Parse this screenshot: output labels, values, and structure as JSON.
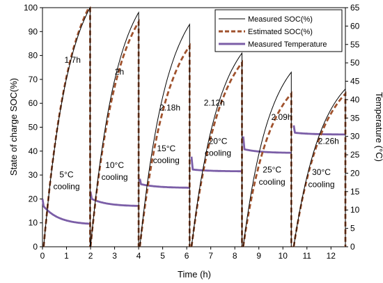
{
  "chart_data": {
    "type": "line",
    "xlabel": "Time (h)",
    "ylabel": "State of charge SOC(%)",
    "y2label": "Temperature (°C)",
    "xlim": [
      0,
      12.6
    ],
    "ylim": [
      0,
      100
    ],
    "y2lim": [
      0,
      65
    ],
    "x_ticks": [
      0,
      1,
      2,
      3,
      4,
      5,
      6,
      7,
      8,
      9,
      10,
      11,
      12
    ],
    "y_ticks": [
      0,
      10,
      20,
      30,
      40,
      50,
      60,
      70,
      80,
      90,
      100
    ],
    "y2_ticks": [
      0,
      5,
      10,
      15,
      20,
      25,
      30,
      35,
      40,
      45,
      50,
      55,
      60,
      65
    ],
    "grid": false,
    "legend_position": "top-right",
    "colors": {
      "measured_soc": "#000000",
      "estimated_soc": "#a0522d",
      "temperature": "#7b5ea7"
    },
    "series": [
      {
        "name": "Measured SOC(%)",
        "axis": "left",
        "style": "solid-thin",
        "segments": [
          {
            "t_start": 0.05,
            "t_end": 1.98,
            "soc_start": 0,
            "soc_end": 100
          },
          {
            "t_start": 2.0,
            "t_end": 4.0,
            "soc_start": 0,
            "soc_end": 98
          },
          {
            "t_start": 4.05,
            "t_end": 6.12,
            "soc_start": 0,
            "soc_end": 93
          },
          {
            "t_start": 6.2,
            "t_end": 8.3,
            "soc_start": 0,
            "soc_end": 81
          },
          {
            "t_start": 8.35,
            "t_end": 10.35,
            "soc_start": 0,
            "soc_end": 73
          },
          {
            "t_start": 10.45,
            "t_end": 12.6,
            "soc_start": 0,
            "soc_end": 66
          }
        ]
      },
      {
        "name": "Estimated SOC(%)",
        "axis": "left",
        "style": "dashed-thick",
        "segments": [
          {
            "t_start": 0.05,
            "t_end": 1.98,
            "soc_start": 0,
            "soc_end": 101
          },
          {
            "t_start": 2.0,
            "t_end": 4.0,
            "soc_start": 0,
            "soc_end": 94
          },
          {
            "t_start": 4.05,
            "t_end": 6.12,
            "soc_start": 0,
            "soc_end": 84
          },
          {
            "t_start": 6.2,
            "t_end": 8.3,
            "soc_start": 0,
            "soc_end": 77
          },
          {
            "t_start": 8.35,
            "t_end": 10.35,
            "soc_start": 0,
            "soc_end": 64
          },
          {
            "t_start": 10.45,
            "t_end": 12.6,
            "soc_start": 0,
            "soc_end": 64
          }
        ]
      },
      {
        "name": "Measured Temperature",
        "axis": "right",
        "style": "solid-thick",
        "segments": [
          {
            "t_start": 0.0,
            "t_end": 1.98,
            "temp_peak": 13,
            "temp_start": 11,
            "temp_end": 6
          },
          {
            "t_start": 2.0,
            "t_end": 4.0,
            "temp_peak": 15,
            "temp_start": 13,
            "temp_end": 11
          },
          {
            "t_start": 4.05,
            "t_end": 6.12,
            "temp_peak": 18.5,
            "temp_start": 17,
            "temp_end": 16
          },
          {
            "t_start": 6.2,
            "t_end": 8.3,
            "temp_peak": 24.5,
            "temp_start": 21,
            "temp_end": 20.5
          },
          {
            "t_start": 8.35,
            "t_end": 10.35,
            "temp_peak": 30,
            "temp_start": 26.5,
            "temp_end": 25.5
          },
          {
            "t_start": 10.45,
            "t_end": 12.6,
            "temp_peak": 33,
            "temp_start": 31,
            "temp_end": 30.5
          }
        ]
      }
    ],
    "annotations": [
      {
        "id": "dur1",
        "text": "1.7h",
        "x": 1.25,
        "y": 77
      },
      {
        "id": "dur2",
        "text": "2h",
        "x": 3.2,
        "y": 72
      },
      {
        "id": "dur3",
        "text": "2.18h",
        "x": 5.3,
        "y": 57
      },
      {
        "id": "dur4",
        "text": "2.12h",
        "x": 7.15,
        "y": 59
      },
      {
        "id": "dur5",
        "text": "2.09h",
        "x": 9.95,
        "y": 53
      },
      {
        "id": "dur6",
        "text": "2.26h",
        "x": 11.9,
        "y": 43
      },
      {
        "id": "c1a",
        "text": "5°C",
        "x": 1.0,
        "y": 29
      },
      {
        "id": "c1b",
        "text": "cooling",
        "x": 1.0,
        "y": 24
      },
      {
        "id": "c2a",
        "text": "10°C",
        "x": 3.0,
        "y": 33
      },
      {
        "id": "c2b",
        "text": "cooling",
        "x": 3.0,
        "y": 28
      },
      {
        "id": "c3a",
        "text": "15°C",
        "x": 5.15,
        "y": 40
      },
      {
        "id": "c3b",
        "text": "cooling",
        "x": 5.15,
        "y": 35
      },
      {
        "id": "c4a",
        "text": "20°C",
        "x": 7.3,
        "y": 43
      },
      {
        "id": "c4b",
        "text": "cooling",
        "x": 7.3,
        "y": 38
      },
      {
        "id": "c5a",
        "text": "25°C",
        "x": 9.55,
        "y": 31
      },
      {
        "id": "c5b",
        "text": "cooling",
        "x": 9.55,
        "y": 26
      },
      {
        "id": "c6a",
        "text": "30°C",
        "x": 11.6,
        "y": 30
      },
      {
        "id": "c6b",
        "text": "cooling",
        "x": 11.6,
        "y": 25
      }
    ]
  }
}
